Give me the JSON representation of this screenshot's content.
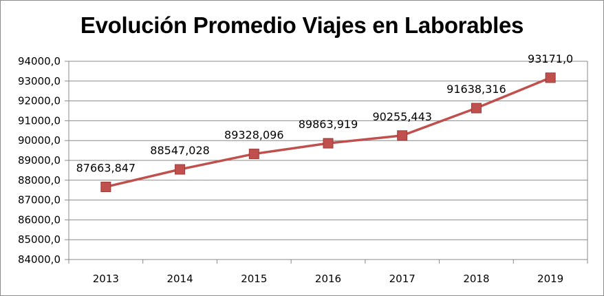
{
  "chart_data": {
    "type": "line",
    "title": "Evolución Promedio Viajes en Laborables",
    "categories": [
      "2013",
      "2014",
      "2015",
      "2016",
      "2017",
      "2018",
      "2019"
    ],
    "series": [
      {
        "values": [
          87663.847,
          88547.028,
          89328.096,
          89863.919,
          90255.443,
          91638.316,
          93171.0
        ],
        "data_labels": [
          "87663,847",
          "88547,028",
          "89328,096",
          "89863,919",
          "90255,443",
          "91638,316",
          "93171,0"
        ]
      }
    ],
    "ylim": [
      84000,
      94000
    ],
    "y_ticks": [
      84000,
      85000,
      86000,
      87000,
      88000,
      89000,
      90000,
      91000,
      92000,
      93000,
      94000
    ],
    "y_tick_labels": [
      "84000,0",
      "85000,0",
      "86000,0",
      "87000,0",
      "88000,0",
      "89000,0",
      "90000,0",
      "91000,0",
      "92000,0",
      "93000,0",
      "94000,0"
    ],
    "xlabel": "",
    "ylabel": "",
    "grid": true,
    "legend": false,
    "colors": {
      "line": "#c0504d",
      "marker": "#c0504d",
      "marker_edge": "#9b3a37",
      "grid": "#898989",
      "axis": "#898989"
    }
  }
}
